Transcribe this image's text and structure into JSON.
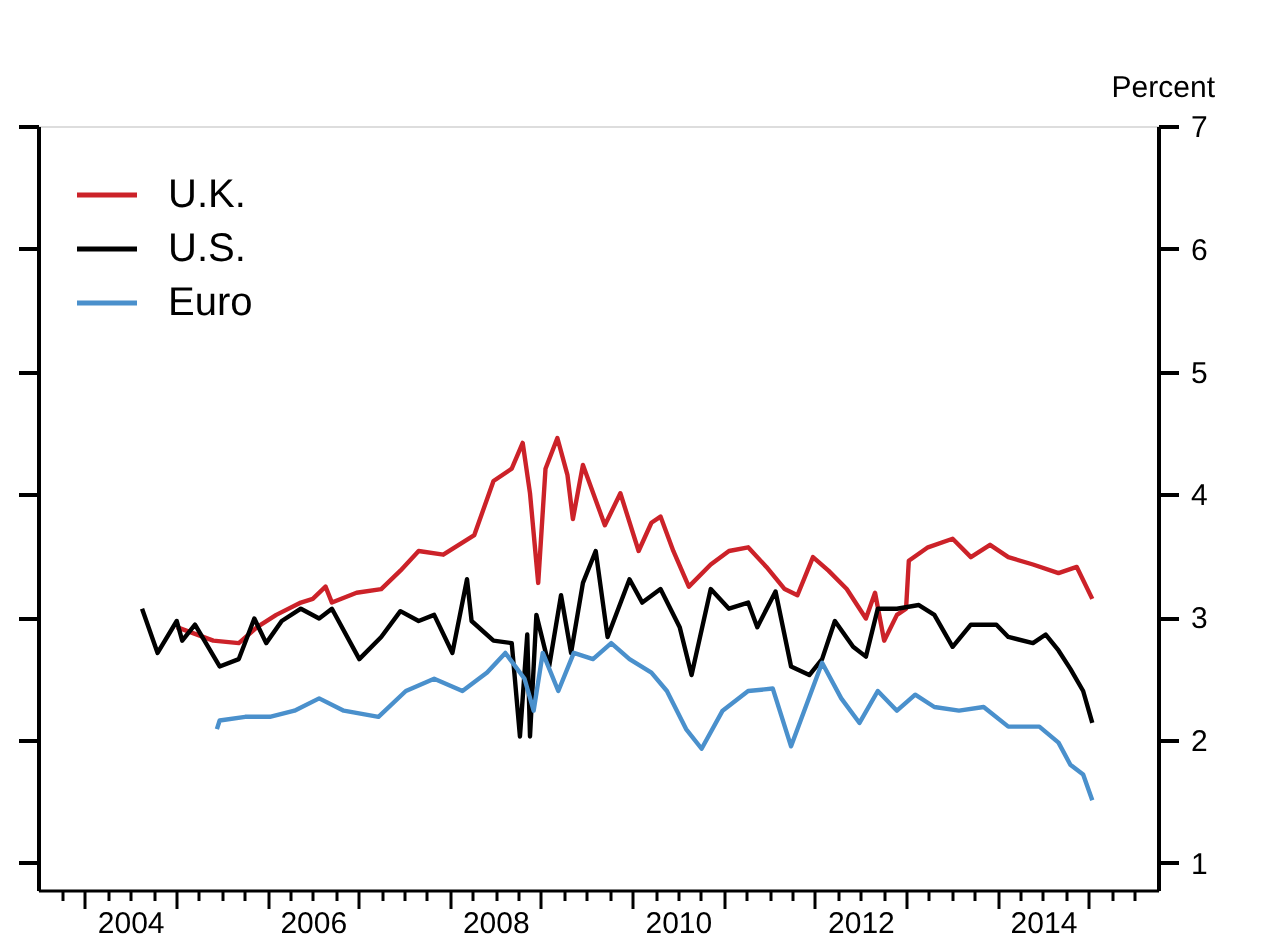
{
  "chart_data": {
    "type": "line",
    "ylabel": "Percent",
    "xlim": [
      2003.49,
      2015.76
    ],
    "ylim": [
      0.78,
      7
    ],
    "yticks": [
      1,
      2,
      3,
      4,
      5,
      6,
      7
    ],
    "xticks": [
      {
        "value": 2003.75,
        "label": null
      },
      {
        "value": 2004,
        "label": null
      },
      {
        "value": 2004.25,
        "label": null
      },
      {
        "value": 2004.5,
        "label": "2004"
      },
      {
        "value": 2004.75,
        "label": null
      },
      {
        "value": 2005,
        "label": null
      },
      {
        "value": 2005.25,
        "label": null
      },
      {
        "value": 2005.5,
        "label": null
      },
      {
        "value": 2005.75,
        "label": null
      },
      {
        "value": 2006,
        "label": null
      },
      {
        "value": 2006.25,
        "label": null
      },
      {
        "value": 2006.5,
        "label": "2006"
      },
      {
        "value": 2006.75,
        "label": null
      },
      {
        "value": 2007,
        "label": null
      },
      {
        "value": 2007.25,
        "label": null
      },
      {
        "value": 2007.5,
        "label": null
      },
      {
        "value": 2007.75,
        "label": null
      },
      {
        "value": 2008,
        "label": null
      },
      {
        "value": 2008.25,
        "label": null
      },
      {
        "value": 2008.5,
        "label": "2008"
      },
      {
        "value": 2008.75,
        "label": null
      },
      {
        "value": 2009,
        "label": null
      },
      {
        "value": 2009.25,
        "label": null
      },
      {
        "value": 2009.5,
        "label": null
      },
      {
        "value": 2009.75,
        "label": null
      },
      {
        "value": 2010,
        "label": null
      },
      {
        "value": 2010.25,
        "label": null
      },
      {
        "value": 2010.5,
        "label": "2010"
      },
      {
        "value": 2010.75,
        "label": null
      },
      {
        "value": 2011,
        "label": null
      },
      {
        "value": 2011.25,
        "label": null
      },
      {
        "value": 2011.5,
        "label": null
      },
      {
        "value": 2011.75,
        "label": null
      },
      {
        "value": 2012,
        "label": null
      },
      {
        "value": 2012.25,
        "label": null
      },
      {
        "value": 2012.5,
        "label": "2012"
      },
      {
        "value": 2012.75,
        "label": null
      },
      {
        "value": 2013,
        "label": null
      },
      {
        "value": 2013.25,
        "label": null
      },
      {
        "value": 2013.5,
        "label": null
      },
      {
        "value": 2013.75,
        "label": null
      },
      {
        "value": 2014,
        "label": null
      },
      {
        "value": 2014.25,
        "label": null
      },
      {
        "value": 2014.5,
        "label": "2014"
      },
      {
        "value": 2014.75,
        "label": null
      },
      {
        "value": 2015,
        "label": null
      },
      {
        "value": 2015.25,
        "label": null
      },
      {
        "value": 2015.5,
        "label": null
      }
    ],
    "grid": false,
    "legend": "top left",
    "line_style": "solid",
    "series": [
      {
        "name": "U.K.",
        "color": "#cc2229",
        "x": [
          2005.01,
          2005.41,
          2005.69,
          2005.89,
          2006.1,
          2006.37,
          2006.5,
          2006.64,
          2006.71,
          2006.98,
          2007.25,
          2007.46,
          2007.66,
          2007.93,
          2008.27,
          2008.48,
          2008.68,
          2008.8,
          2008.88,
          2008.97,
          2009.05,
          2009.18,
          2009.29,
          2009.35,
          2009.46,
          2009.7,
          2009.87,
          2010.07,
          2010.21,
          2010.31,
          2010.45,
          2010.62,
          2010.86,
          2011.06,
          2011.27,
          2011.47,
          2011.67,
          2011.81,
          2011.98,
          2012.15,
          2012.35,
          2012.56,
          2012.66,
          2012.76,
          2012.9,
          2013.0,
          2013.03,
          2013.24,
          2013.51,
          2013.71,
          2013.92,
          2014.12,
          2014.39,
          2014.67,
          2014.87,
          2015.04
        ],
        "values": [
          2.92,
          2.81,
          2.79,
          2.92,
          3.02,
          3.12,
          3.15,
          3.25,
          3.12,
          3.2,
          3.23,
          3.38,
          3.54,
          3.51,
          3.67,
          4.11,
          4.21,
          4.42,
          4.01,
          3.28,
          4.21,
          4.46,
          4.16,
          3.8,
          4.24,
          3.75,
          4.01,
          3.54,
          3.77,
          3.82,
          3.54,
          3.25,
          3.43,
          3.54,
          3.57,
          3.41,
          3.23,
          3.18,
          3.49,
          3.38,
          3.23,
          2.99,
          3.2,
          2.81,
          3.02,
          3.07,
          3.46,
          3.57,
          3.64,
          3.49,
          3.59,
          3.49,
          3.43,
          3.36,
          3.41,
          3.15
        ]
      },
      {
        "name": "U.S.",
        "color": "#000000",
        "x": [
          2004.63,
          2004.8,
          2005.01,
          2005.07,
          2005.21,
          2005.48,
          2005.69,
          2005.86,
          2005.99,
          2006.16,
          2006.37,
          2006.57,
          2006.71,
          2007.01,
          2007.25,
          2007.46,
          2007.66,
          2007.83,
          2008.03,
          2008.19,
          2008.24,
          2008.48,
          2008.68,
          2008.77,
          2008.85,
          2008.88,
          2008.95,
          2009.09,
          2009.22,
          2009.33,
          2009.46,
          2009.6,
          2009.73,
          2009.97,
          2010.11,
          2010.31,
          2010.52,
          2010.65,
          2010.86,
          2011.06,
          2011.27,
          2011.37,
          2011.57,
          2011.74,
          2011.94,
          2012.08,
          2012.22,
          2012.42,
          2012.56,
          2012.69,
          2012.9,
          2013.14,
          2013.31,
          2013.51,
          2013.71,
          2013.99,
          2014.12,
          2014.39,
          2014.53,
          2014.67,
          2014.8,
          2014.94,
          2015.04
        ],
        "values": [
          3.07,
          2.71,
          2.97,
          2.81,
          2.94,
          2.6,
          2.66,
          2.99,
          2.79,
          2.97,
          3.07,
          2.99,
          3.07,
          2.66,
          2.84,
          3.05,
          2.97,
          3.02,
          2.71,
          3.31,
          2.97,
          2.81,
          2.79,
          2.03,
          2.86,
          2.03,
          3.02,
          2.6,
          3.18,
          2.71,
          3.28,
          3.54,
          2.84,
          3.31,
          3.12,
          3.23,
          2.92,
          2.53,
          3.23,
          3.07,
          3.12,
          2.92,
          3.21,
          2.6,
          2.53,
          2.66,
          2.97,
          2.76,
          2.68,
          3.07,
          3.07,
          3.1,
          3.02,
          2.76,
          2.94,
          2.94,
          2.84,
          2.79,
          2.86,
          2.73,
          2.58,
          2.4,
          2.14
        ]
      },
      {
        "name": "Euro",
        "color": "#4a90cc",
        "x": [
          2005.45,
          2005.48,
          2005.76,
          2006.03,
          2006.3,
          2006.57,
          2006.84,
          2007.22,
          2007.52,
          2007.83,
          2008.14,
          2008.41,
          2008.61,
          2008.82,
          2008.92,
          2009.02,
          2009.19,
          2009.36,
          2009.57,
          2009.77,
          2009.97,
          2010.21,
          2010.38,
          2010.59,
          2010.76,
          2010.99,
          2011.27,
          2011.54,
          2011.74,
          2011.91,
          2012.08,
          2012.29,
          2012.49,
          2012.69,
          2012.9,
          2013.1,
          2013.31,
          2013.58,
          2013.85,
          2014.12,
          2014.46,
          2014.67,
          2014.8,
          2014.94,
          2015.04
        ],
        "values": [
          2.09,
          2.16,
          2.19,
          2.19,
          2.24,
          2.34,
          2.24,
          2.19,
          2.4,
          2.5,
          2.4,
          2.55,
          2.71,
          2.5,
          2.24,
          2.71,
          2.4,
          2.71,
          2.66,
          2.79,
          2.66,
          2.55,
          2.4,
          2.09,
          1.93,
          2.24,
          2.4,
          2.42,
          1.95,
          2.29,
          2.63,
          2.34,
          2.14,
          2.4,
          2.24,
          2.37,
          2.27,
          2.24,
          2.27,
          2.11,
          2.11,
          1.98,
          1.8,
          1.72,
          1.51
        ]
      }
    ]
  }
}
